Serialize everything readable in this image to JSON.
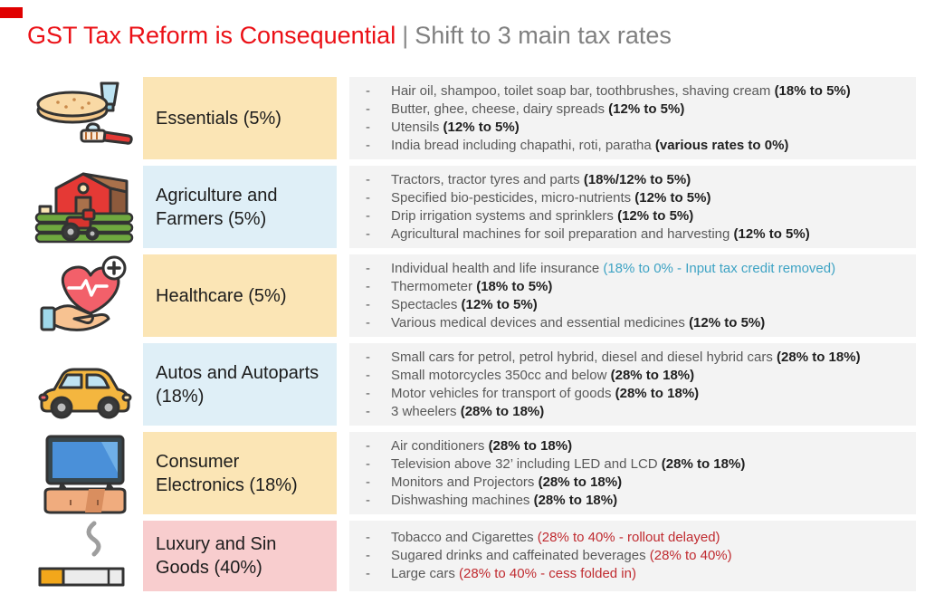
{
  "colors": {
    "accent_bar": "#E00000",
    "title_primary": "#EB1016",
    "title_secondary": "#808080",
    "label_yellow": "#FBE5B5",
    "label_blue": "#DFEFF7",
    "label_pink": "#F8CDCE",
    "detail_bg": "#F3F3F3",
    "body_text": "#595959",
    "note_bold": "#1F1F1F",
    "note_teal": "#3EA3C4",
    "note_red": "#C02B30"
  },
  "title": {
    "primary": "GST Tax Reform is Consequential",
    "separator": "|",
    "secondary": "Shift to 3 main tax rates"
  },
  "bullet_char": "-",
  "rows": [
    {
      "icon": "bread-toothbrush-icon",
      "label": "Essentials (5%)",
      "label_bg": "#FBE5B5",
      "items": [
        {
          "text": "Hair oil, shampoo, toilet soap bar, toothbrushes, shaving cream",
          "note": "(18% to 5%)",
          "style": "bold"
        },
        {
          "text": "Butter, ghee, cheese, dairy spreads",
          "note": "(12% to 5%)",
          "style": "bold"
        },
        {
          "text": "Utensils",
          "note": "(12% to 5%)",
          "style": "bold"
        },
        {
          "text": "India bread including chapathi, roti, paratha",
          "note": "(various rates to 0%)",
          "style": "bold"
        }
      ]
    },
    {
      "icon": "farm-icon",
      "label": "Agriculture and Farmers (5%)",
      "label_bg": "#DFEFF7",
      "items": [
        {
          "text": "Tractors, tractor tyres and parts",
          "note": "(18%/12% to 5%)",
          "style": "bold"
        },
        {
          "text": "Specified bio-pesticides, micro-nutrients",
          "note": "(12% to 5%)",
          "style": "bold"
        },
        {
          "text": "Drip irrigation systems and sprinklers",
          "note": "(12% to 5%)",
          "style": "bold"
        },
        {
          "text": "Agricultural machines for soil preparation and harvesting",
          "note": "(12% to 5%)",
          "style": "bold"
        }
      ]
    },
    {
      "icon": "healthcare-icon",
      "label": "Healthcare (5%)",
      "label_bg": "#FBE5B5",
      "items": [
        {
          "text": "Individual health and life insurance",
          "note": "(18% to 0% - Input tax credit removed)",
          "style": "teal"
        },
        {
          "text": "Thermometer",
          "note": "(18% to 5%)",
          "style": "bold"
        },
        {
          "text": "Spectacles",
          "note": "(12% to 5%)",
          "style": "bold"
        },
        {
          "text": "Various medical devices and essential medicines",
          "note": "(12% to 5%)",
          "style": "bold"
        }
      ]
    },
    {
      "icon": "car-icon",
      "label": "Autos and Autoparts (18%)",
      "label_bg": "#DFEFF7",
      "items": [
        {
          "text": "Small cars for petrol, petrol hybrid, diesel and diesel hybrid cars",
          "note": "(28% to 18%)",
          "style": "bold"
        },
        {
          "text": "Small motorcycles 350cc and below",
          "note": "(28% to 18%)",
          "style": "bold"
        },
        {
          "text": "Motor vehicles for transport of goods",
          "note": "(28% to 18%)",
          "style": "bold"
        },
        {
          "text": "3 wheelers",
          "note": "(28% to 18%)",
          "style": "bold"
        }
      ]
    },
    {
      "icon": "tv-icon",
      "label": "Consumer Electronics (18%)",
      "label_bg": "#FBE5B5",
      "items": [
        {
          "text": "Air conditioners",
          "note": "(28% to 18%)",
          "style": "bold"
        },
        {
          "text": "Television above 32’ including LED and LCD",
          "note": "(28% to 18%)",
          "style": "bold"
        },
        {
          "text": "Monitors and Projectors",
          "note": "(28% to 18%)",
          "style": "bold"
        },
        {
          "text": "Dishwashing machines",
          "note": "(28% to 18%)",
          "style": "bold"
        }
      ]
    },
    {
      "icon": "cigarette-icon",
      "label": "Luxury and Sin Goods (40%)",
      "label_bg": "#F8CDCE",
      "items": [
        {
          "text": "Tobacco and Cigarettes",
          "note": "(28% to 40% - rollout delayed)",
          "style": "red"
        },
        {
          "text": "Sugared drinks and caffeinated beverages",
          "note": "(28% to 40%)",
          "style": "red"
        },
        {
          "text": "Large cars",
          "note": "(28% to 40% - cess folded in)",
          "style": "red"
        }
      ]
    }
  ]
}
